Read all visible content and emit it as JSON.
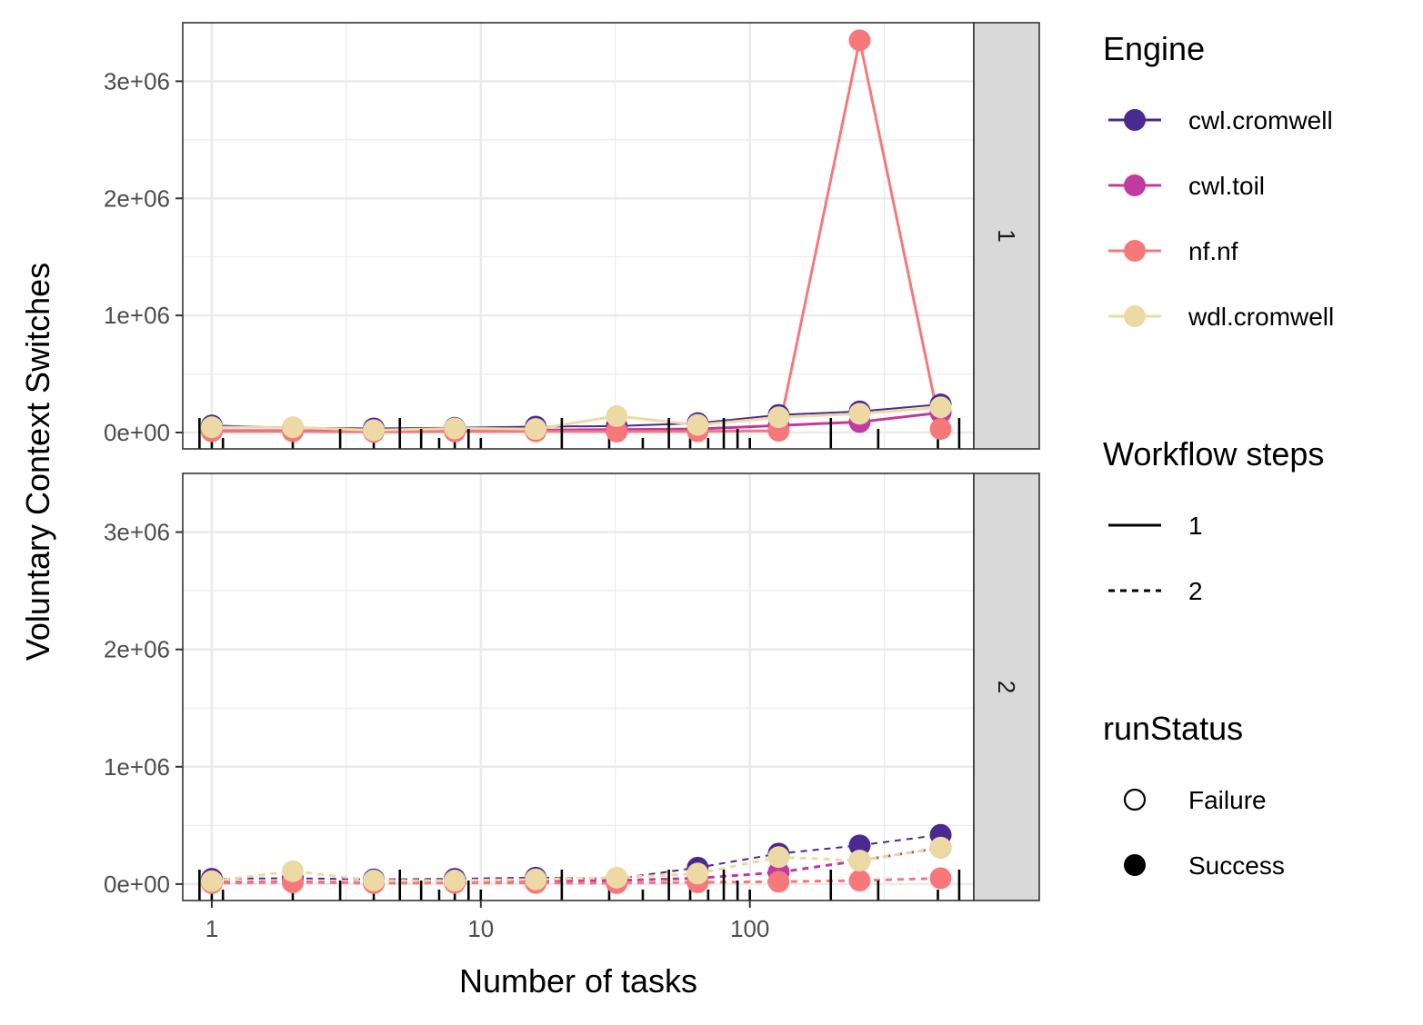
{
  "chart_data": {
    "type": "line",
    "xlabel": "Number of tasks",
    "ylabel": "Voluntary Context Switches",
    "x_scale": "log10",
    "xlim": [
      0.78,
      680
    ],
    "ylim": [
      -140000,
      3500000
    ],
    "x_ticks": [
      {
        "value": 1,
        "label": "1"
      },
      {
        "value": 10,
        "label": "10"
      },
      {
        "value": 100,
        "label": "100"
      }
    ],
    "y_ticks": [
      {
        "value": 0,
        "label": "0e+00"
      },
      {
        "value": 1000000,
        "label": "1e+06"
      },
      {
        "value": 2000000,
        "label": "2e+06"
      },
      {
        "value": 3000000,
        "label": "3e+06"
      }
    ],
    "grid": true,
    "facets": [
      "1",
      "2"
    ],
    "x": [
      1,
      2,
      4,
      8,
      16,
      32,
      64,
      128,
      256,
      512
    ],
    "colors": {
      "cwl.cromwell": "#4a2991",
      "cwl.toil": "#c13a9f",
      "nf.nf": "#f6787a",
      "wdl.cromwell": "#edd9a3"
    },
    "series": [
      {
        "facet": "1",
        "engine": "cwl.cromwell",
        "steps": "1",
        "values": [
          60000,
          40000,
          35000,
          40000,
          50000,
          55000,
          80000,
          150000,
          180000,
          240000
        ]
      },
      {
        "facet": "1",
        "engine": "cwl.toil",
        "steps": "1",
        "values": [
          15000,
          15000,
          10000,
          15000,
          20000,
          25000,
          30000,
          60000,
          90000,
          170000
        ]
      },
      {
        "facet": "1",
        "engine": "nf.nf",
        "steps": "1",
        "values": [
          10000,
          10000,
          5000,
          8000,
          10000,
          8000,
          10000,
          15000,
          3350000,
          30000
        ]
      },
      {
        "facet": "1",
        "engine": "wdl.cromwell",
        "steps": "1",
        "values": [
          45000,
          45000,
          20000,
          35000,
          30000,
          140000,
          65000,
          130000,
          160000,
          215000
        ]
      },
      {
        "facet": "2",
        "engine": "cwl.cromwell",
        "steps": "2",
        "values": [
          45000,
          50000,
          40000,
          45000,
          55000,
          45000,
          140000,
          260000,
          330000,
          420000
        ]
      },
      {
        "facet": "2",
        "engine": "cwl.toil",
        "steps": "2",
        "values": [
          15000,
          20000,
          10000,
          15000,
          25000,
          30000,
          50000,
          100000,
          200000,
          310000
        ]
      },
      {
        "facet": "2",
        "engine": "nf.nf",
        "steps": "2",
        "values": [
          8000,
          15000,
          8000,
          10000,
          10000,
          8000,
          15000,
          20000,
          30000,
          50000
        ]
      },
      {
        "facet": "2",
        "engine": "wdl.cromwell",
        "steps": "2",
        "values": [
          25000,
          110000,
          30000,
          30000,
          40000,
          55000,
          90000,
          230000,
          200000,
          310000
        ]
      }
    ],
    "rug_x": [
      0.9,
      1,
      1.1,
      2,
      3,
      4,
      5,
      6,
      7,
      8,
      9,
      10,
      20,
      30,
      40,
      50,
      60,
      70,
      80,
      90,
      100,
      200,
      300,
      500,
      600
    ],
    "legends": {
      "engine": {
        "title": "Engine",
        "items": [
          "cwl.cromwell",
          "cwl.toil",
          "nf.nf",
          "wdl.cromwell"
        ]
      },
      "steps": {
        "title": "Workflow steps",
        "items": [
          "1",
          "2"
        ]
      },
      "run_status": {
        "title": "runStatus",
        "items": [
          "Failure",
          "Success"
        ]
      }
    },
    "legend_position": "right"
  }
}
